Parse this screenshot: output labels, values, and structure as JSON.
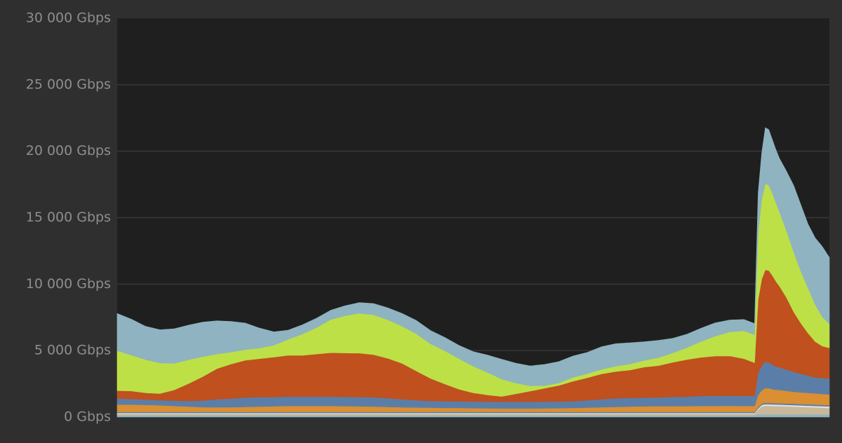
{
  "colors": {
    "page_background": "#2f2f2f",
    "plot_background": "#1f1f1f",
    "gridline": "#383838",
    "tick_label": "#8e8e8e"
  },
  "chart_data": {
    "type": "area",
    "stacked": true,
    "title": "",
    "xlabel": "",
    "ylabel": "",
    "ylim": [
      0,
      30000
    ],
    "y_ticks": [
      {
        "value": 0,
        "label": "0 Gbps"
      },
      {
        "value": 5000,
        "label": "5 000 Gbps"
      },
      {
        "value": 10000,
        "label": "10 000 Gbps"
      },
      {
        "value": 15000,
        "label": "15 000 Gbps"
      },
      {
        "value": 20000,
        "label": "20 000 Gbps"
      },
      {
        "value": 25000,
        "label": "25 000 Gbps"
      },
      {
        "value": 30000,
        "label": "30 000 Gbps"
      }
    ],
    "x_ticks": [],
    "grid": true,
    "legend": "none",
    "x": [
      0,
      2,
      4,
      6,
      8,
      10,
      12,
      14,
      16,
      18,
      20,
      22,
      24,
      26,
      28,
      30,
      32,
      34,
      36,
      38,
      40,
      42,
      44,
      46,
      48,
      50,
      52,
      54,
      56,
      58,
      60,
      62,
      64,
      66,
      68,
      70,
      72,
      74,
      76,
      78,
      80,
      82,
      84,
      86,
      88,
      89.5,
      90,
      90.5,
      91,
      91.5,
      92,
      92.5,
      93,
      94,
      95,
      96,
      97,
      98,
      99,
      100
    ],
    "series": [
      {
        "color": "#8fb3c0",
        "values": [
          130,
          130,
          130,
          130,
          130,
          130,
          130,
          130,
          130,
          130,
          130,
          130,
          130,
          130,
          130,
          130,
          130,
          130,
          130,
          130,
          130,
          130,
          130,
          130,
          130,
          130,
          130,
          130,
          130,
          130,
          130,
          130,
          130,
          130,
          130,
          130,
          130,
          130,
          130,
          130,
          130,
          130,
          130,
          130,
          130,
          130,
          200,
          200,
          200,
          200,
          200,
          200,
          200,
          200,
          200,
          200,
          200,
          200,
          200,
          200
        ]
      },
      {
        "color": "#c9b899",
        "values": [
          120,
          120,
          120,
          120,
          120,
          120,
          120,
          120,
          120,
          120,
          120,
          120,
          120,
          120,
          120,
          120,
          120,
          120,
          120,
          120,
          120,
          120,
          120,
          120,
          120,
          120,
          120,
          120,
          120,
          120,
          120,
          120,
          120,
          120,
          120,
          120,
          120,
          120,
          120,
          120,
          120,
          120,
          120,
          120,
          120,
          120,
          350,
          600,
          650,
          650,
          630,
          630,
          620,
          600,
          580,
          560,
          540,
          520,
          500,
          480
        ]
      },
      {
        "color": "#e0e0e0",
        "values": [
          60,
          60,
          60,
          60,
          60,
          60,
          60,
          60,
          60,
          60,
          60,
          60,
          60,
          60,
          60,
          60,
          60,
          60,
          60,
          60,
          60,
          60,
          60,
          60,
          60,
          60,
          60,
          60,
          60,
          60,
          60,
          60,
          60,
          60,
          60,
          60,
          60,
          60,
          60,
          60,
          60,
          60,
          60,
          60,
          60,
          60,
          100,
          120,
          120,
          120,
          120,
          120,
          120,
          120,
          120,
          120,
          120,
          120,
          120,
          120
        ]
      },
      {
        "color": "#5b7ea8",
        "values": [
          80,
          80,
          80,
          80,
          80,
          80,
          80,
          80,
          80,
          80,
          80,
          80,
          80,
          80,
          80,
          80,
          80,
          80,
          80,
          80,
          80,
          80,
          80,
          80,
          80,
          80,
          80,
          80,
          80,
          80,
          80,
          80,
          80,
          80,
          80,
          80,
          80,
          80,
          80,
          80,
          80,
          80,
          80,
          80,
          80,
          80,
          100,
          100,
          100,
          100,
          100,
          100,
          100,
          100,
          100,
          100,
          100,
          100,
          100,
          100
        ]
      },
      {
        "color": "#d98f32",
        "values": [
          550,
          550,
          530,
          500,
          450,
          400,
          350,
          350,
          350,
          380,
          400,
          420,
          450,
          450,
          450,
          450,
          430,
          420,
          400,
          380,
          350,
          330,
          320,
          300,
          300,
          280,
          270,
          260,
          260,
          260,
          270,
          280,
          300,
          320,
          350,
          380,
          400,
          420,
          430,
          430,
          440,
          450,
          450,
          460,
          450,
          450,
          900,
          1000,
          1100,
          1100,
          1050,
          1000,
          1000,
          950,
          900,
          880,
          860,
          840,
          820,
          800
        ]
      },
      {
        "color": "#5b7ea8",
        "values": [
          450,
          420,
          400,
          380,
          400,
          420,
          500,
          600,
          650,
          700,
          700,
          700,
          700,
          700,
          700,
          700,
          700,
          700,
          700,
          650,
          600,
          550,
          500,
          500,
          500,
          500,
          500,
          500,
          500,
          500,
          500,
          500,
          500,
          550,
          600,
          650,
          650,
          650,
          650,
          700,
          700,
          750,
          750,
          750,
          750,
          750,
          1700,
          1850,
          2000,
          1950,
          1850,
          1750,
          1700,
          1600,
          1500,
          1400,
          1300,
          1200,
          1200,
          1200
        ]
      },
      {
        "color": "#c0501e",
        "values": [
          600,
          600,
          500,
          500,
          800,
          1300,
          1800,
          2300,
          2600,
          2800,
          2900,
          3000,
          3100,
          3100,
          3200,
          3300,
          3300,
          3300,
          3200,
          3000,
          2700,
          2200,
          1700,
          1300,
          900,
          650,
          500,
          400,
          600,
          800,
          1000,
          1200,
          1500,
          1700,
          1900,
          2000,
          2100,
          2300,
          2400,
          2600,
          2800,
          2900,
          3000,
          3000,
          2800,
          2500,
          5500,
          6500,
          6900,
          6900,
          6700,
          6400,
          6100,
          5400,
          4500,
          3800,
          3200,
          2700,
          2400,
          2300
        ]
      },
      {
        "color": "#bde046",
        "values": [
          3000,
          2700,
          2500,
          2300,
          2000,
          1800,
          1500,
          1100,
          900,
          800,
          800,
          900,
          1200,
          1600,
          2000,
          2500,
          2800,
          3000,
          3000,
          2900,
          2800,
          2800,
          2600,
          2500,
          2300,
          2000,
          1700,
          1300,
          800,
          400,
          200,
          200,
          300,
          300,
          350,
          400,
          450,
          500,
          600,
          700,
          900,
          1200,
          1500,
          1800,
          2100,
          2100,
          5000,
          6000,
          6500,
          6400,
          6200,
          5900,
          5600,
          5000,
          4500,
          3900,
          3400,
          2800,
          2200,
          1800
        ]
      },
      {
        "color": "#8fb3c0",
        "values": [
          2800,
          2700,
          2500,
          2500,
          2600,
          2600,
          2600,
          2500,
          2300,
          2000,
          1500,
          1000,
          700,
          700,
          700,
          700,
          750,
          800,
          850,
          900,
          950,
          1000,
          1000,
          1000,
          1000,
          1100,
          1300,
          1500,
          1500,
          1500,
          1600,
          1600,
          1600,
          1600,
          1700,
          1700,
          1600,
          1400,
          1300,
          1100,
          1000,
          1000,
          1000,
          900,
          850,
          850,
          3000,
          3500,
          4200,
          4200,
          4000,
          4000,
          4000,
          4500,
          5000,
          5000,
          4800,
          5000,
          5300,
          5000
        ]
      }
    ]
  }
}
